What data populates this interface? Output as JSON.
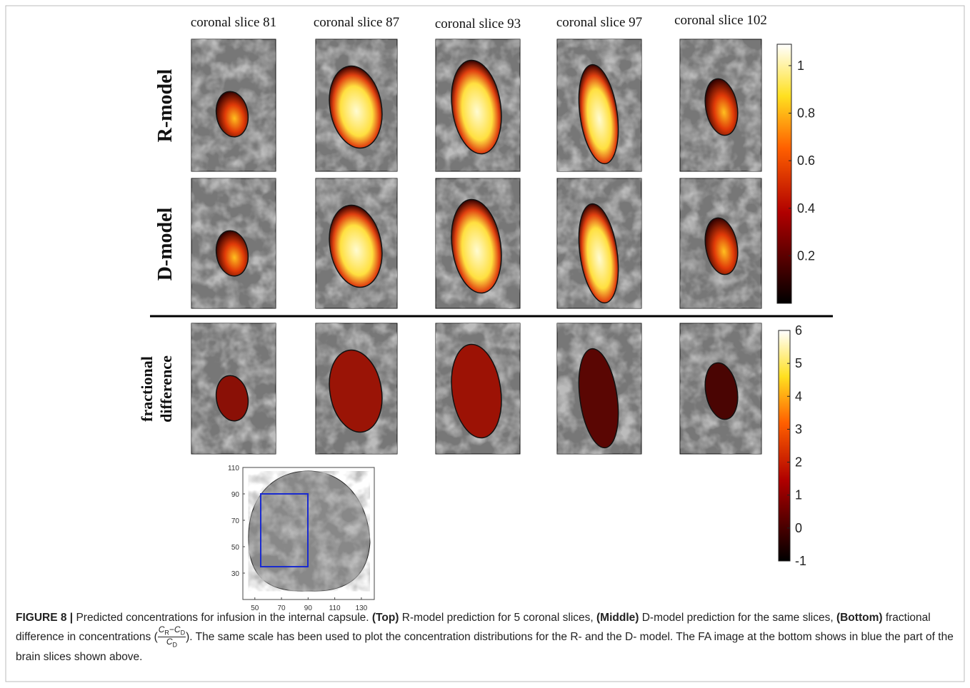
{
  "columns": [
    "coronal slice 81",
    "coronal slice 87",
    "coronal slice 93",
    "coronal slice 97",
    "coronal slice 102"
  ],
  "row_labels": {
    "r_model": "R-model",
    "d_model": "D-model",
    "fractional_difference": [
      "fractional",
      "difference"
    ]
  },
  "colorbar_concentration": {
    "lim": [
      0,
      1.09
    ],
    "ticks": [
      1,
      0.8,
      0.6,
      0.4,
      0.2
    ]
  },
  "colorbar_difference": {
    "lim": [
      -1,
      6
    ],
    "ticks": [
      6,
      5,
      4,
      3,
      2,
      1,
      0,
      -1
    ]
  },
  "inset": {
    "xlim": [
      41,
      139.7
    ],
    "ylim": [
      10,
      110
    ],
    "xticks": [
      50,
      70,
      90,
      110,
      130
    ],
    "yticks": [
      110,
      90,
      70,
      50,
      30
    ]
  },
  "caption": {
    "before": [
      {
        "text": "FIGURE 8 |",
        "bold": true
      },
      {
        "text": " Predicted concentrations for infusion in the internal capsule. ",
        "bold": false
      },
      {
        "text": "(Top)",
        "bold": true
      },
      {
        "text": " R-model prediction for 5 coronal slices, ",
        "bold": false
      },
      {
        "text": "(Middle)",
        "bold": true
      },
      {
        "text": " D-model prediction for the same slices, ",
        "bold": false
      },
      {
        "text": "(Bottom)",
        "bold": true
      },
      {
        "text": " fractional difference in concentrations (",
        "bold": false
      }
    ],
    "formula": {
      "numerator": [
        [
          "C",
          "R"
        ],
        [
          "−C",
          "D"
        ]
      ],
      "denominator": [
        [
          "C",
          "D"
        ]
      ]
    },
    "after": "). The same scale has been used to plot the concentration distributions for the R- and the D- model. The FA image at the bottom shows in blue the part of the brain slices shown above."
  }
}
